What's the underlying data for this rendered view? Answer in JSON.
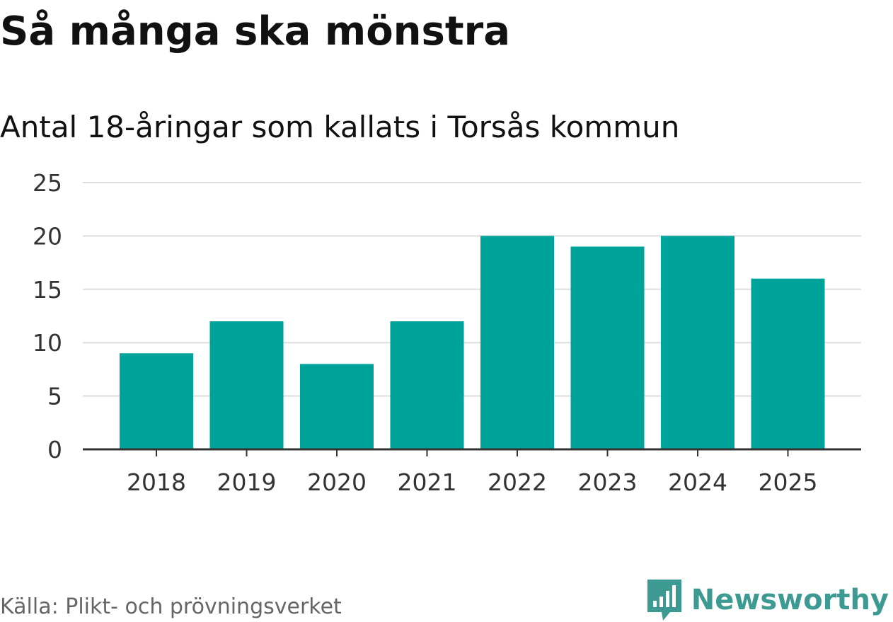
{
  "header": {
    "title": "Så många ska mönstra",
    "subtitle": "Antal 18-åringar som kallats i Torsås kommun"
  },
  "footer": {
    "source": "Källa: Plikt- och prövningsverket",
    "brand": "Newsworthy"
  },
  "colors": {
    "bar": "#00a39a",
    "grid": "#dddddd",
    "axis": "#333333",
    "brand": "#3d9a92"
  },
  "icons": {
    "brand_logo": "bar-chart-speech-bubble-icon"
  },
  "chart_data": {
    "type": "bar",
    "categories": [
      "2018",
      "2019",
      "2020",
      "2021",
      "2022",
      "2023",
      "2024",
      "2025"
    ],
    "values": [
      9,
      12,
      8,
      12,
      20,
      19,
      20,
      16
    ],
    "title": "Så många ska mönstra",
    "subtitle": "Antal 18-åringar som kallats i Torsås kommun",
    "xlabel": "",
    "ylabel": "",
    "ylim": [
      0,
      25
    ],
    "yticks": [
      "0",
      "5",
      "10",
      "15",
      "20",
      "25"
    ],
    "grid": true,
    "legend": "none"
  }
}
